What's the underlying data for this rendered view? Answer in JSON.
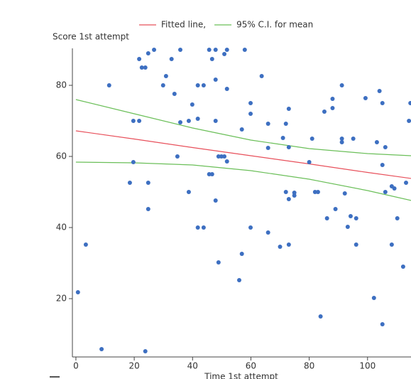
{
  "chart_data": {
    "type": "scatter",
    "y_label": "Score 1st attempt",
    "x_label": "Time 1st attempt",
    "xlim": [
      -1.2,
      114.9
    ],
    "ylim": [
      3.6,
      90.4
    ],
    "xticks": [
      0,
      20,
      40,
      60,
      80,
      100
    ],
    "yticks": [
      20,
      40,
      60,
      80
    ],
    "points": {
      "color": "#3d6fc1",
      "x": [
        0.7,
        3.4,
        8.8,
        11.4,
        18.5,
        19.7,
        19.7,
        21.7,
        21.7,
        22.6,
        23.8,
        23.8,
        24.8,
        24.8,
        24.8,
        26.8,
        29.9,
        30.9,
        32.8,
        33.8,
        34.8,
        35.8,
        35.8,
        38.7,
        38.7,
        39.9,
        41.8,
        41.8,
        41.8,
        43.8,
        43.8,
        45.7,
        45.7,
        46.7,
        46.7,
        47.9,
        47.9,
        47.9,
        47.9,
        48.9,
        48.9,
        49.9,
        50.9,
        50.9,
        51.8,
        51.8,
        51.8,
        56,
        56.9,
        56.9,
        57.9,
        59.9,
        59.9,
        59.9,
        63.7,
        65.9,
        65.9,
        65.9,
        70,
        71,
        72,
        72,
        73,
        73,
        73,
        73,
        74.9,
        74.9,
        80,
        81,
        82,
        83,
        83.9,
        85.2,
        86.1,
        88,
        88,
        89,
        91.2,
        91.2,
        91.2,
        92.2,
        93.2,
        94.2,
        95.1,
        96.1,
        96.1,
        99.3,
        102.2,
        103.2,
        104.1,
        105.1,
        105.1,
        105.1,
        106.1,
        106.1,
        108.3,
        108.3,
        109.2,
        110.2,
        112.2,
        113.2,
        114.2,
        114.7
      ],
      "y": [
        21.8,
        35.2,
        5.8,
        80,
        52.6,
        70,
        58.4,
        70,
        87.4,
        85,
        85,
        5.2,
        89,
        52.6,
        45.2,
        90,
        80,
        82.6,
        87.4,
        77.6,
        60,
        90,
        69.6,
        70,
        50,
        74.6,
        70.6,
        80,
        40,
        80,
        40,
        90,
        55,
        87.4,
        55,
        90,
        81.6,
        70,
        47.6,
        60,
        30.2,
        60,
        60,
        88.8,
        90,
        79,
        58.6,
        25.2,
        67.6,
        32.6,
        90,
        75,
        72,
        40,
        82.6,
        62.4,
        69.2,
        38.6,
        34.6,
        65.2,
        69.2,
        50,
        73.4,
        62.6,
        48,
        35.2,
        49.8,
        49,
        58.4,
        65,
        50,
        50,
        15,
        72.6,
        42.6,
        76.2,
        73.6,
        45.2,
        80,
        65,
        64,
        49.6,
        40.2,
        43.2,
        65,
        42.6,
        35.2,
        76.4,
        20.2,
        64,
        78.4,
        75,
        57.6,
        12.8,
        62.6,
        50,
        51.6,
        35.2,
        51,
        42.6,
        29,
        52.6,
        70,
        75
      ]
    },
    "lines": [
      {
        "name": "Fitted line,",
        "color": "#e8505b",
        "x": [
          0,
          20,
          40,
          60,
          80,
          100,
          115
        ],
        "values": [
          67.2,
          64.9,
          62.5,
          60.2,
          57.9,
          55.5,
          53.8
        ]
      },
      {
        "name": "95% C.I. for mean",
        "color": "#6bbf59",
        "x": [
          0,
          20,
          40,
          60,
          80,
          100,
          115
        ],
        "upper": [
          76,
          72,
          68,
          64.6,
          62.2,
          60.8,
          60.2
        ],
        "lower": [
          58.4,
          58.2,
          57.6,
          56,
          53.6,
          50.4,
          47.6
        ]
      }
    ]
  }
}
